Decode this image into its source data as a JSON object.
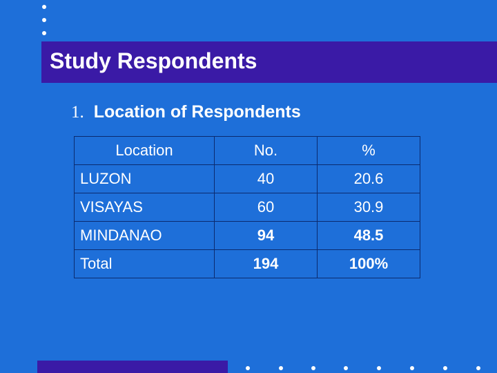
{
  "slide": {
    "title": "Study Respondents",
    "subtitle_number": "1.",
    "subtitle": "Location of Respondents"
  },
  "table": {
    "headers": [
      "Location",
      "No.",
      "%"
    ],
    "rows": [
      {
        "location": "LUZON",
        "no": "40",
        "pct": "20.6"
      },
      {
        "location": "VISAYAS",
        "no": "60",
        "pct": "30.9"
      },
      {
        "location": "MINDANAO",
        "no": "94",
        "pct": "48.5"
      },
      {
        "location": "Total",
        "no": "194",
        "pct": "100%"
      }
    ]
  },
  "colors": {
    "background": "#1e6fd9",
    "title_bar": "#3a1aa6",
    "text": "#ffffff"
  }
}
